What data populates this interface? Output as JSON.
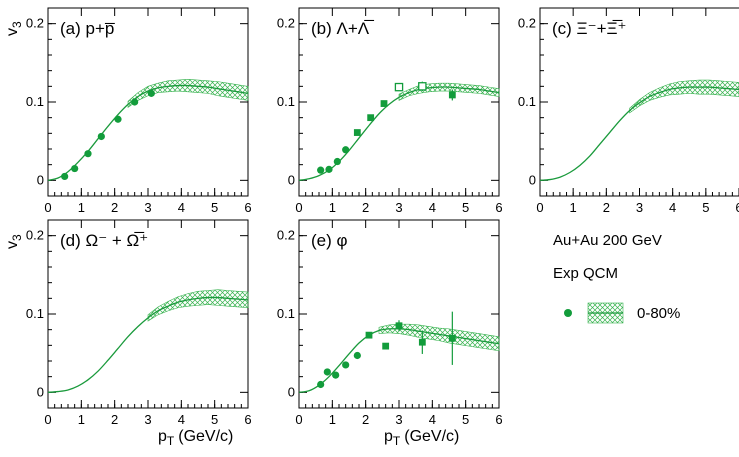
{
  "legend": {
    "system": "Au+Au 200 GeV",
    "sources": "Exp QCM",
    "centrality": "0-80%"
  },
  "axes": {
    "y_symbol": "v",
    "y_sub": "3",
    "x_label_p": "p",
    "x_label_sub": "T",
    "x_label_rest": "(GeV/c)"
  },
  "colors": {
    "data": "#129c3b",
    "model": "#1a9a3c",
    "band": "#37b24f"
  },
  "chart_data": [
    {
      "id": "a",
      "type": "scatter",
      "title": "(a) p+p̅",
      "xlabel": "",
      "ylabel": "v3",
      "xlim": [
        0,
        6
      ],
      "ylim": [
        -0.02,
        0.22
      ],
      "xticks": [
        0,
        1,
        2,
        3,
        4,
        5,
        6
      ],
      "yticks": [
        0,
        0.1,
        0.2
      ],
      "series": [
        {
          "name": "Exp",
          "marker": "circle",
          "x": [
            0.5,
            0.8,
            1.2,
            1.6,
            2.1,
            2.6,
            3.1
          ],
          "y": [
            0.005,
            0.015,
            0.034,
            0.056,
            0.078,
            0.1,
            0.111
          ],
          "err": [
            0.002,
            0.002,
            0.002,
            0.002,
            0.003,
            0.003,
            0.004
          ]
        },
        {
          "name": "QCM",
          "kind": "model_band",
          "x": [
            0,
            0.3,
            0.6,
            0.9,
            1.2,
            1.5,
            1.8,
            2.1,
            2.4,
            2.7,
            3.0,
            3.3,
            3.6,
            3.9,
            4.2,
            4.5,
            4.8,
            5.1,
            5.4,
            5.7,
            6.0
          ],
          "y": [
            0.0,
            0.003,
            0.011,
            0.023,
            0.037,
            0.053,
            0.069,
            0.084,
            0.097,
            0.107,
            0.114,
            0.118,
            0.12,
            0.121,
            0.121,
            0.12,
            0.119,
            0.117,
            0.115,
            0.113,
            0.111
          ],
          "band_from": 2.4,
          "band_halfwidth": [
            0.0,
            0.0,
            0.0,
            0.0,
            0.0,
            0.0,
            0.0,
            0.0,
            0.004,
            0.005,
            0.006,
            0.006,
            0.007,
            0.007,
            0.008,
            0.008,
            0.008,
            0.009,
            0.009,
            0.009,
            0.009
          ]
        }
      ]
    },
    {
      "id": "b",
      "type": "scatter",
      "title": "(b) Λ+Λ̅",
      "xlabel": "",
      "ylabel": "v3",
      "xlim": [
        0,
        6
      ],
      "ylim": [
        -0.02,
        0.22
      ],
      "xticks": [
        0,
        1,
        2,
        3,
        4,
        5,
        6
      ],
      "yticks": [
        0,
        0.1,
        0.2
      ],
      "series": [
        {
          "name": "Exp (filled)",
          "marker": "circle",
          "x": [
            0.65,
            0.9,
            1.15,
            1.4
          ],
          "y": [
            0.013,
            0.014,
            0.024,
            0.039
          ],
          "err": [
            0.002,
            0.002,
            0.002,
            0.002
          ]
        },
        {
          "name": "Exp (filled square)",
          "marker": "square",
          "x": [
            1.75,
            2.15,
            2.55,
            4.6
          ],
          "y": [
            0.061,
            0.08,
            0.098,
            0.109
          ],
          "err": [
            0.003,
            0.004,
            0.004,
            0.007
          ]
        },
        {
          "name": "Exp (open square)",
          "marker": "open-square",
          "x": [
            3.0,
            3.7
          ],
          "y": [
            0.119,
            0.12
          ],
          "err": [
            0.005,
            0.006
          ]
        },
        {
          "name": "QCM",
          "kind": "model_band",
          "x": [
            0,
            0.3,
            0.6,
            0.9,
            1.2,
            1.5,
            1.8,
            2.1,
            2.4,
            2.7,
            3.0,
            3.3,
            3.6,
            3.9,
            4.2,
            4.5,
            4.8,
            5.1,
            5.4,
            5.7,
            6.0
          ],
          "y": [
            0.0,
            0.002,
            0.006,
            0.013,
            0.024,
            0.038,
            0.054,
            0.07,
            0.085,
            0.097,
            0.106,
            0.112,
            0.116,
            0.118,
            0.119,
            0.119,
            0.118,
            0.117,
            0.116,
            0.114,
            0.112
          ],
          "band_from": 3.0,
          "band_halfwidth": [
            0.0,
            0.0,
            0.0,
            0.0,
            0.0,
            0.0,
            0.0,
            0.0,
            0.0,
            0.0,
            0.004,
            0.004,
            0.005,
            0.005,
            0.005,
            0.005,
            0.005,
            0.005,
            0.005,
            0.005,
            0.005
          ]
        }
      ]
    },
    {
      "id": "c",
      "type": "line",
      "title": "(c) Ξ⁻+Ξ̅⁺",
      "xlabel": "",
      "ylabel": "v3",
      "xlim": [
        0,
        6
      ],
      "ylim": [
        -0.02,
        0.22
      ],
      "xticks": [
        0,
        1,
        2,
        3,
        4,
        5,
        6
      ],
      "yticks": [
        0,
        0.1,
        0.2
      ],
      "series": [
        {
          "name": "QCM",
          "kind": "model_band",
          "x": [
            0,
            0.3,
            0.6,
            0.9,
            1.2,
            1.5,
            1.8,
            2.1,
            2.4,
            2.7,
            3.0,
            3.3,
            3.6,
            3.9,
            4.2,
            4.5,
            4.8,
            5.1,
            5.4,
            5.7,
            6.0
          ],
          "y": [
            0.0,
            0.001,
            0.004,
            0.01,
            0.019,
            0.031,
            0.046,
            0.061,
            0.076,
            0.089,
            0.099,
            0.107,
            0.112,
            0.116,
            0.118,
            0.119,
            0.119,
            0.119,
            0.118,
            0.117,
            0.116
          ],
          "band_from": 2.7,
          "band_halfwidth": [
            0.0,
            0.0,
            0.0,
            0.0,
            0.0,
            0.0,
            0.0,
            0.0,
            0.0,
            0.003,
            0.004,
            0.005,
            0.006,
            0.007,
            0.008,
            0.008,
            0.009,
            0.009,
            0.009,
            0.009,
            0.009
          ]
        }
      ]
    },
    {
      "id": "d",
      "type": "line",
      "title": "(d) Ω⁻ + Ω̅⁺",
      "xlabel": "pT (GeV/c)",
      "ylabel": "v3",
      "xlim": [
        0,
        6
      ],
      "ylim": [
        -0.02,
        0.22
      ],
      "xticks": [
        0,
        1,
        2,
        3,
        4,
        5,
        6
      ],
      "yticks": [
        0,
        0.1,
        0.2
      ],
      "series": [
        {
          "name": "QCM",
          "kind": "model_band",
          "x": [
            0,
            0.3,
            0.6,
            0.9,
            1.2,
            1.5,
            1.8,
            2.1,
            2.4,
            2.7,
            3.0,
            3.3,
            3.6,
            3.9,
            4.2,
            4.5,
            4.8,
            5.1,
            5.4,
            5.7,
            6.0
          ],
          "y": [
            0.0,
            0.001,
            0.003,
            0.008,
            0.016,
            0.027,
            0.041,
            0.056,
            0.071,
            0.084,
            0.095,
            0.104,
            0.11,
            0.115,
            0.118,
            0.12,
            0.121,
            0.121,
            0.12,
            0.119,
            0.118
          ],
          "band_from": 3.0,
          "band_halfwidth": [
            0.0,
            0.0,
            0.0,
            0.0,
            0.0,
            0.0,
            0.0,
            0.0,
            0.0,
            0.0,
            0.004,
            0.005,
            0.006,
            0.007,
            0.008,
            0.009,
            0.009,
            0.01,
            0.01,
            0.01,
            0.01
          ]
        }
      ]
    },
    {
      "id": "e",
      "type": "scatter",
      "title": "(e) φ",
      "xlabel": "pT (GeV/c)",
      "ylabel": "v3",
      "xlim": [
        0,
        6
      ],
      "ylim": [
        -0.02,
        0.22
      ],
      "xticks": [
        0,
        1,
        2,
        3,
        4,
        5,
        6
      ],
      "yticks": [
        0,
        0.1,
        0.2
      ],
      "series": [
        {
          "name": "Exp (circle)",
          "marker": "circle",
          "x": [
            0.65,
            0.85,
            1.1,
            1.4,
            1.75
          ],
          "y": [
            0.01,
            0.026,
            0.022,
            0.035,
            0.047
          ],
          "err": [
            0.002,
            0.003,
            0.003,
            0.003,
            0.003
          ]
        },
        {
          "name": "Exp (square)",
          "marker": "square",
          "x": [
            2.1,
            2.6,
            3.0,
            3.7,
            4.6
          ],
          "y": [
            0.073,
            0.059,
            0.085,
            0.064,
            0.069
          ],
          "err": [
            0.004,
            0.004,
            0.007,
            0.015,
            0.034
          ]
        },
        {
          "name": "QCM",
          "kind": "model_band",
          "x": [
            0,
            0.3,
            0.6,
            0.9,
            1.2,
            1.5,
            1.8,
            2.1,
            2.4,
            2.7,
            3.0,
            3.3,
            3.6,
            3.9,
            4.2,
            4.5,
            4.8,
            5.1,
            5.4,
            5.7,
            6.0
          ],
          "y": [
            0.0,
            0.002,
            0.009,
            0.02,
            0.034,
            0.049,
            0.063,
            0.073,
            0.079,
            0.081,
            0.081,
            0.08,
            0.078,
            0.076,
            0.074,
            0.072,
            0.07,
            0.068,
            0.066,
            0.064,
            0.062
          ],
          "band_from": 2.4,
          "band_halfwidth": [
            0.0,
            0.0,
            0.0,
            0.0,
            0.0,
            0.0,
            0.0,
            0.0,
            0.004,
            0.005,
            0.006,
            0.007,
            0.008,
            0.008,
            0.008,
            0.009,
            0.009,
            0.009,
            0.009,
            0.009,
            0.009
          ]
        }
      ]
    }
  ]
}
